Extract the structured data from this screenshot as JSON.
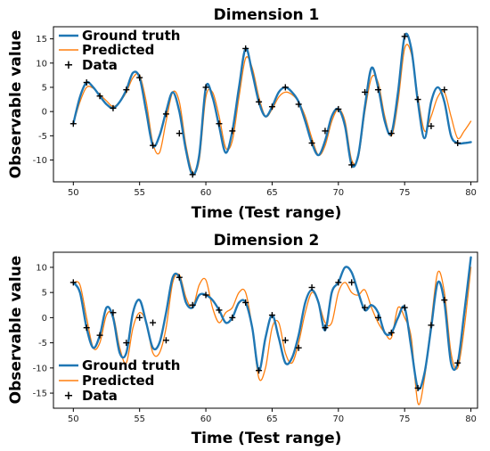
{
  "chart_data": [
    {
      "type": "line",
      "title": "Dimension 1",
      "xlabel": "Time (Test range)",
      "ylabel": "Observable value",
      "xlim": [
        48.5,
        80.5
      ],
      "ylim": [
        -14.5,
        17.5
      ],
      "xticks": [
        50,
        55,
        60,
        65,
        70,
        75,
        80
      ],
      "yticks": [
        -10,
        -5,
        0,
        5,
        10,
        15
      ],
      "legend_placement": "top-left",
      "colors": {
        "ground_truth": "#1f77b4",
        "predicted": "#ff7f0e",
        "data": "#000000"
      },
      "series": [
        {
          "name": "Ground truth",
          "x": [
            50,
            50.5,
            51,
            51.5,
            52,
            52.5,
            53,
            53.5,
            54,
            54.5,
            55,
            55.5,
            56,
            56.5,
            57,
            57.5,
            58,
            58.5,
            59,
            59.5,
            60,
            60.5,
            61,
            61.5,
            62,
            62.5,
            63,
            63.5,
            64,
            64.5,
            65,
            65.5,
            66,
            66.5,
            67,
            67.5,
            68,
            68.5,
            69,
            69.5,
            70,
            70.5,
            71,
            71.5,
            72,
            72.5,
            73,
            73.5,
            74,
            74.5,
            75,
            75.5,
            76,
            76.5,
            77,
            77.5,
            78,
            78.5,
            79,
            79.5,
            80
          ],
          "values": [
            -2.5,
            3,
            6,
            5,
            3.2,
            1.5,
            0.7,
            2,
            4.5,
            8,
            7,
            0,
            -7,
            -5,
            0,
            4,
            0,
            -8,
            -13,
            -9,
            5,
            3,
            -3,
            -8.5,
            -4,
            5,
            13,
            8,
            2,
            -1,
            1,
            4,
            5,
            4,
            2,
            -2,
            -6.5,
            -9,
            -6,
            -1,
            0.5,
            -3,
            -11,
            -9,
            1,
            9,
            5,
            -2,
            -4.5,
            4,
            15.5,
            13,
            2,
            -5.5,
            2,
            5,
            2,
            -5,
            -6.5,
            -6.5,
            -6.3
          ]
        },
        {
          "name": "Predicted",
          "x": [
            50,
            50.5,
            51,
            51.5,
            52,
            52.5,
            53,
            53.5,
            54,
            54.5,
            55,
            55.5,
            56,
            56.5,
            57,
            57.5,
            58,
            58.5,
            59,
            59.5,
            60,
            60.5,
            61,
            61.5,
            62,
            62.5,
            63,
            63.5,
            64,
            64.5,
            65,
            65.5,
            66,
            66.5,
            67,
            67.5,
            68,
            68.5,
            69,
            69.5,
            70,
            70.5,
            71,
            71.5,
            72,
            72.5,
            73,
            73.5,
            74,
            74.5,
            75,
            75.5,
            76,
            76.5,
            77,
            77.5,
            78,
            78.5,
            79,
            79.5,
            80
          ],
          "values": [
            -2.5,
            2,
            5,
            4.8,
            3.5,
            2.2,
            1,
            2,
            4,
            7,
            7.5,
            2,
            -6.5,
            -8.5,
            -2,
            4,
            2,
            -7,
            -12.5,
            -10,
            3,
            4,
            -1,
            -7.5,
            -6,
            3,
            11,
            9,
            3,
            -1,
            0.5,
            3,
            4,
            3.5,
            2,
            -1,
            -5.5,
            -9,
            -7,
            -2,
            0.5,
            -2,
            -10,
            -9.5,
            0,
            7,
            6,
            -1,
            -5,
            2,
            13,
            12,
            3,
            -4,
            -1,
            3,
            4,
            -1,
            -5.5,
            -4,
            -2
          ]
        },
        {
          "name": "Data",
          "marker": "+",
          "x": [
            50,
            51,
            52,
            53,
            54,
            55,
            56,
            57,
            58,
            59,
            60,
            61,
            62,
            63,
            64,
            65,
            66,
            67,
            68,
            69,
            70,
            71,
            72,
            73,
            74,
            75,
            76,
            77,
            78,
            79
          ],
          "values": [
            -2.5,
            6,
            3.2,
            0.7,
            4.5,
            7,
            -7,
            -0.5,
            -4.5,
            -13,
            5,
            -2.5,
            -4,
            13,
            2,
            1,
            5,
            1.5,
            -6.5,
            -4,
            0.5,
            -11,
            4,
            4.5,
            -4.5,
            15.5,
            2.5,
            -3,
            4.5,
            -6.5
          ]
        }
      ]
    },
    {
      "type": "line",
      "title": "Dimension 2",
      "xlabel": "Time (Test range)",
      "ylabel": "Observable value",
      "xlim": [
        48.5,
        80.5
      ],
      "ylim": [
        -18,
        13
      ],
      "xticks": [
        50,
        55,
        60,
        65,
        70,
        75,
        80
      ],
      "yticks": [
        -15,
        -10,
        -5,
        0,
        5,
        10
      ],
      "legend_placement": "bottom-left",
      "colors": {
        "ground_truth": "#1f77b4",
        "predicted": "#ff7f0e",
        "data": "#000000"
      },
      "series": [
        {
          "name": "Ground truth",
          "x": [
            50,
            50.5,
            51,
            51.5,
            52,
            52.5,
            53,
            53.5,
            54,
            54.5,
            55,
            55.5,
            56,
            56.5,
            57,
            57.5,
            58,
            58.5,
            59,
            59.5,
            60,
            60.5,
            61,
            61.5,
            62,
            62.5,
            63,
            63.5,
            64,
            64.5,
            65,
            65.5,
            66,
            66.5,
            67,
            67.5,
            68,
            68.5,
            69,
            69.5,
            70,
            70.5,
            71,
            71.5,
            72,
            72.5,
            73,
            73.5,
            74,
            74.5,
            75,
            75.5,
            76,
            76.5,
            77,
            77.5,
            78,
            78.5,
            79,
            79.5,
            80
          ],
          "values": [
            7,
            5,
            -2,
            -6,
            -3.5,
            2,
            0,
            -7,
            -7,
            1,
            3.5,
            -1,
            -6,
            -5,
            1,
            8,
            8,
            3,
            2,
            4.5,
            4.5,
            3.5,
            1.5,
            -1,
            0,
            3,
            3,
            -2,
            -10.5,
            -4,
            0.5,
            -4,
            -9,
            -8,
            -3.5,
            3,
            5.5,
            3,
            -2.5,
            5,
            7,
            10,
            9,
            5,
            1.5,
            2.5,
            1,
            -3,
            -3,
            0,
            2,
            -6,
            -14,
            -11,
            -2,
            7,
            3,
            -9,
            -9,
            1,
            12
          ]
        },
        {
          "name": "Predicted",
          "x": [
            50,
            50.5,
            51,
            51.5,
            52,
            52.5,
            53,
            53.5,
            54,
            54.5,
            55,
            55.5,
            56,
            56.5,
            57,
            57.5,
            58,
            58.5,
            59,
            59.5,
            60,
            60.5,
            61,
            61.5,
            62,
            62.5,
            63,
            63.5,
            64,
            64.5,
            65,
            65.5,
            66,
            66.5,
            67,
            67.5,
            68,
            68.5,
            69,
            69.5,
            70,
            70.5,
            71,
            71.5,
            72,
            72.5,
            73,
            73.5,
            74,
            74.5,
            75,
            75.5,
            76,
            76.5,
            77,
            77.5,
            78,
            78.5,
            79,
            79.5,
            80
          ],
          "values": [
            7,
            6.5,
            0,
            -6,
            -5,
            0.5,
            0.5,
            -6,
            -9,
            -2,
            1,
            -1,
            -7,
            -7,
            -2,
            7,
            8.5,
            4,
            2,
            6.5,
            7.5,
            2,
            -1,
            1,
            2,
            5,
            5,
            -2,
            -12,
            -10,
            -2,
            -1,
            -7,
            -9,
            -5,
            1,
            5,
            3,
            -1,
            -1,
            5,
            7,
            5,
            4.5,
            5.5,
            2,
            -1,
            -3,
            -4,
            2,
            0,
            -4,
            -17,
            -12,
            -1,
            9,
            5,
            -7,
            -10,
            -2,
            10
          ]
        },
        {
          "name": "Data",
          "marker": "+",
          "x": [
            50,
            51,
            52,
            53,
            54,
            55,
            56,
            57,
            58,
            59,
            60,
            61,
            62,
            63,
            64,
            65,
            66,
            67,
            68,
            69,
            70,
            71,
            72,
            73,
            74,
            75,
            76,
            77,
            78,
            79
          ],
          "values": [
            7,
            -2,
            -3.5,
            1,
            -5,
            0,
            -1,
            -4.5,
            8,
            2.5,
            4.5,
            1.5,
            0,
            3,
            -10.5,
            0.5,
            -4.5,
            -6,
            6,
            -2,
            7,
            7,
            2,
            0,
            -3,
            2,
            -14,
            -1.5,
            3.5,
            -9
          ]
        }
      ]
    }
  ]
}
